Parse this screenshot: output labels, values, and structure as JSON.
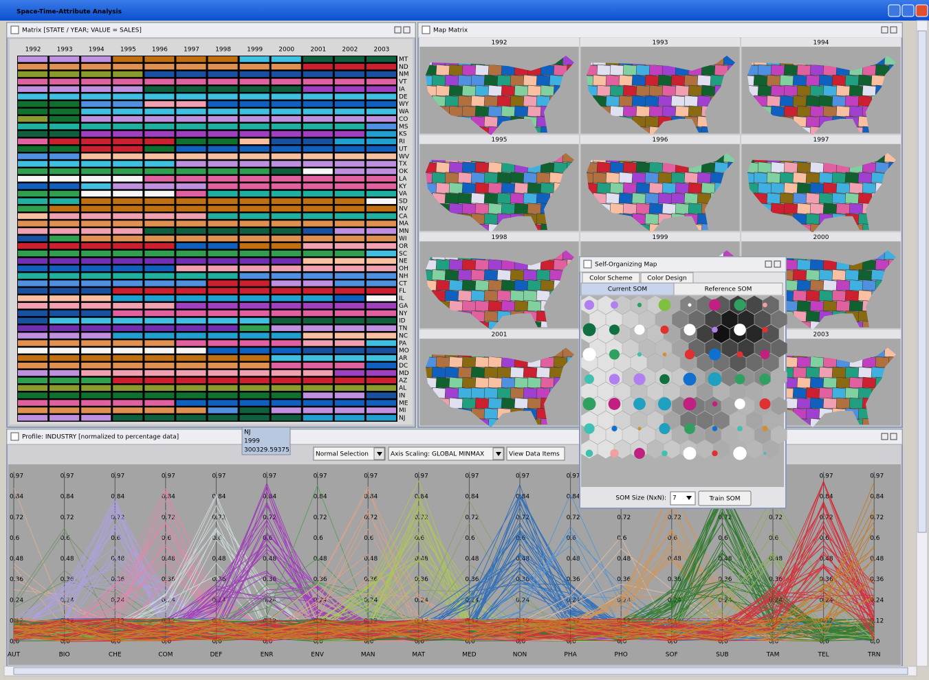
{
  "window": {
    "title": "Space-Time-Attribute Analysis"
  },
  "matrix": {
    "title": "Matrix [STATE / YEAR; VALUE = SALES]",
    "years": [
      "1992",
      "1993",
      "1994",
      "1995",
      "1996",
      "1997",
      "1998",
      "1999",
      "2000",
      "2001",
      "2002",
      "2003"
    ],
    "states": [
      "MT",
      "ND",
      "NM",
      "VT",
      "IA",
      "DE",
      "WY",
      "WA",
      "CO",
      "MS",
      "KS",
      "RI",
      "UT",
      "WV",
      "TX",
      "OK",
      "LA",
      "KY",
      "VA",
      "SD",
      "NV",
      "CA",
      "MA",
      "MN",
      "WI",
      "OR",
      "SC",
      "NE",
      "OH",
      "NH",
      "CT",
      "FL",
      "IL",
      "GA",
      "NY",
      "ID",
      "TN",
      "NC",
      "PA",
      "MO",
      "AR",
      "DC",
      "MD",
      "AZ",
      "AL",
      "IN",
      "ME",
      "MI",
      "NJ"
    ]
  },
  "map_matrix": {
    "title": "Map Matrix",
    "years": [
      "1992",
      "1993",
      "1994",
      "1995",
      "1996",
      "1997",
      "1998",
      "1999",
      "2000",
      "2001",
      "2003"
    ]
  },
  "som": {
    "title": "Self-Organizing Map",
    "tabs": [
      "Color Scheme",
      "Color Design"
    ],
    "subtabs": [
      "Current SOM",
      "Reference SOM"
    ],
    "size_label": "SOM Size (NxN):",
    "size": "7",
    "train_button": "Train SOM"
  },
  "profile": {
    "title": "Profile: INDUSTRY [normalized to percentage data]",
    "tooltip": [
      "NJ",
      "1999",
      "300329.59375"
    ],
    "controls": [
      "Normal Selection",
      "Axis Scaling: GLOBAL MINMAX",
      "View Data Items"
    ],
    "axes": [
      "AUT",
      "BIO",
      "CHE",
      "COM",
      "DEF",
      "ENR",
      "ENV",
      "MAN",
      "MAT",
      "MED",
      "NON",
      "PHA",
      "PHO",
      "SOF",
      "SUB",
      "TAM",
      "TEL",
      "TRN"
    ],
    "ticks": [
      "0.97",
      "0.84",
      "0.72",
      "0.6",
      "0.48",
      "0.36",
      "0.24",
      "0.12",
      "0.0"
    ]
  }
}
